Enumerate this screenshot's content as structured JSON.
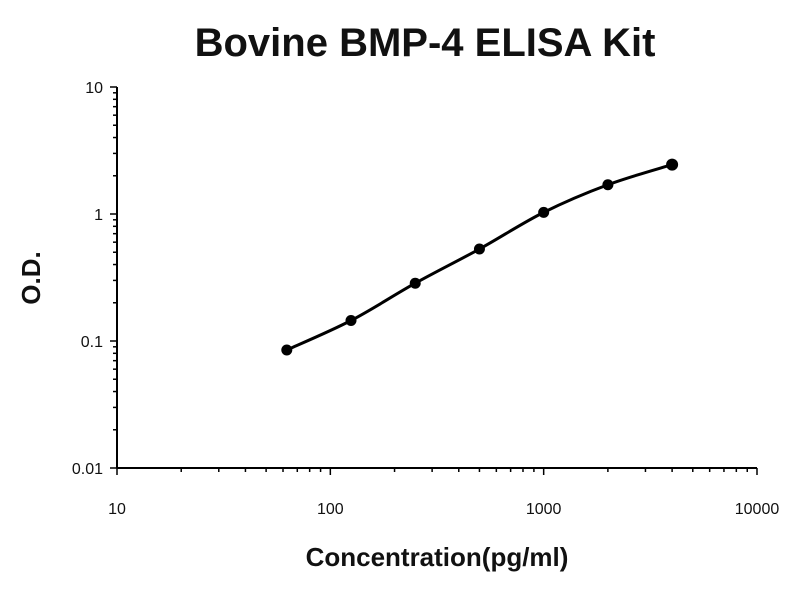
{
  "chart_data": {
    "type": "scatter",
    "title": "Bovine BMP-4 ELISA Kit",
    "xlabel": "Concentration(pg/ml)",
    "ylabel": "O.D.",
    "xscale": "log",
    "yscale": "log",
    "xlim": [
      10,
      10000
    ],
    "ylim": [
      0.01,
      10
    ],
    "x_ticks": [
      "10",
      "100",
      "1000",
      "10000"
    ],
    "y_ticks": [
      "0.01",
      "0.1",
      "1",
      "10"
    ],
    "grid": false,
    "legend": "none",
    "series": [
      {
        "x": [
          62.5,
          125,
          250,
          500,
          1000,
          2000,
          4000
        ],
        "y": [
          0.085,
          0.145,
          0.285,
          0.53,
          1.03,
          1.7,
          2.45
        ],
        "fit_curve": true
      }
    ]
  }
}
